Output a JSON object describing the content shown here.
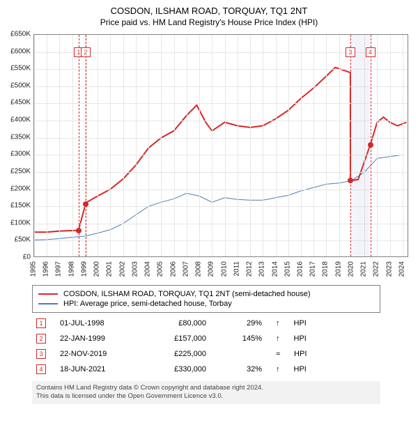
{
  "title": "COSDON, ILSHAM ROAD, TORQUAY, TQ1 2NT",
  "subtitle": "Price paid vs. HM Land Registry's House Price Index (HPI)",
  "chart": {
    "type": "line",
    "x_domain": [
      1995,
      2024.5
    ],
    "y_domain": [
      0,
      650000
    ],
    "y_ticks": [
      0,
      50000,
      100000,
      150000,
      200000,
      250000,
      300000,
      350000,
      400000,
      450000,
      500000,
      550000,
      600000,
      650000
    ],
    "x_ticks": [
      1995,
      1996,
      1997,
      1998,
      1999,
      2000,
      2001,
      2002,
      2003,
      2004,
      2005,
      2006,
      2007,
      2008,
      2009,
      2010,
      2011,
      2012,
      2013,
      2014,
      2015,
      2016,
      2017,
      2018,
      2019,
      2020,
      2021,
      2022,
      2023,
      2024
    ],
    "grid_color": "#e6e6e6",
    "border_color": "#808080",
    "background_color": "#ffffff",
    "shade_band": {
      "start": 2020.1,
      "end": 2021.4
    },
    "series_red": {
      "color": "#d62728",
      "width": 2,
      "points": [
        [
          1995,
          75000
        ],
        [
          1996,
          75000
        ],
        [
          1997,
          78000
        ],
        [
          1998.5,
          80000
        ],
        [
          1998.5,
          82000
        ],
        [
          1999.05,
          157000
        ],
        [
          1999.05,
          160000
        ],
        [
          2000,
          180000
        ],
        [
          2001,
          200000
        ],
        [
          2002,
          230000
        ],
        [
          2003,
          270000
        ],
        [
          2004,
          320000
        ],
        [
          2005,
          350000
        ],
        [
          2006,
          370000
        ],
        [
          2007,
          415000
        ],
        [
          2007.8,
          445000
        ],
        [
          2008.5,
          395000
        ],
        [
          2009,
          370000
        ],
        [
          2010,
          395000
        ],
        [
          2011,
          385000
        ],
        [
          2012,
          380000
        ],
        [
          2013,
          385000
        ],
        [
          2014,
          405000
        ],
        [
          2015,
          430000
        ],
        [
          2016,
          465000
        ],
        [
          2017,
          495000
        ],
        [
          2018,
          530000
        ],
        [
          2018.7,
          555000
        ],
        [
          2019.5,
          545000
        ],
        [
          2019.89,
          540000
        ],
        [
          2019.89,
          225000
        ],
        [
          2020.5,
          228000
        ],
        [
          2021.46,
          330000
        ],
        [
          2021.46,
          330000
        ],
        [
          2022,
          395000
        ],
        [
          2022.5,
          410000
        ],
        [
          2023,
          395000
        ],
        [
          2023.6,
          385000
        ],
        [
          2024.3,
          395000
        ]
      ]
    },
    "series_blue": {
      "color": "#4a7bb5",
      "width": 1,
      "points": [
        [
          1995,
          52000
        ],
        [
          1996,
          53000
        ],
        [
          1997,
          56000
        ],
        [
          1998,
          60000
        ],
        [
          1999,
          63000
        ],
        [
          2000,
          72000
        ],
        [
          2001,
          82000
        ],
        [
          2002,
          100000
        ],
        [
          2003,
          125000
        ],
        [
          2004,
          150000
        ],
        [
          2005,
          162000
        ],
        [
          2006,
          172000
        ],
        [
          2007,
          188000
        ],
        [
          2008,
          180000
        ],
        [
          2009,
          162000
        ],
        [
          2010,
          175000
        ],
        [
          2011,
          170000
        ],
        [
          2012,
          168000
        ],
        [
          2013,
          168000
        ],
        [
          2014,
          175000
        ],
        [
          2015,
          182000
        ],
        [
          2016,
          195000
        ],
        [
          2017,
          205000
        ],
        [
          2018,
          215000
        ],
        [
          2019,
          218000
        ],
        [
          2020,
          225000
        ],
        [
          2021,
          250000
        ],
        [
          2022,
          290000
        ],
        [
          2023,
          295000
        ],
        [
          2024,
          300000
        ]
      ]
    },
    "event_markers": [
      {
        "n": "1",
        "x": 1998.5,
        "y": 80000,
        "y_box": 600000,
        "color": "#d62728"
      },
      {
        "n": "2",
        "x": 1999.05,
        "y": 157000,
        "y_box": 600000,
        "color": "#d62728"
      },
      {
        "n": "3",
        "x": 2019.89,
        "y": 225000,
        "y_box": 600000,
        "color": "#d62728"
      },
      {
        "n": "4",
        "x": 2021.46,
        "y": 330000,
        "y_box": 600000,
        "color": "#d62728"
      }
    ]
  },
  "legend": [
    {
      "color": "#d62728",
      "label": "COSDON, ILSHAM ROAD, TORQUAY, TQ1 2NT (semi-detached house)"
    },
    {
      "color": "#4a7bb5",
      "label": "HPI: Average price, semi-detached house, Torbay"
    }
  ],
  "events_table": [
    {
      "n": "1",
      "color": "#d62728",
      "date": "01-JUL-1998",
      "price": "£80,000",
      "pct": "29%",
      "arrow": "↑",
      "rel": "HPI"
    },
    {
      "n": "2",
      "color": "#d62728",
      "date": "22-JAN-1999",
      "price": "£157,000",
      "pct": "145%",
      "arrow": "↑",
      "rel": "HPI"
    },
    {
      "n": "3",
      "color": "#d62728",
      "date": "22-NOV-2019",
      "price": "£225,000",
      "pct": "",
      "arrow": "≈",
      "rel": "HPI"
    },
    {
      "n": "4",
      "color": "#d62728",
      "date": "18-JUN-2021",
      "price": "£330,000",
      "pct": "32%",
      "arrow": "↑",
      "rel": "HPI"
    }
  ],
  "footer_line1": "Contains HM Land Registry data © Crown copyright and database right 2024.",
  "footer_line2": "This data is licensed under the Open Government Licence v3.0.",
  "ytick_prefix": "£",
  "ytick_suffix_k": "K"
}
